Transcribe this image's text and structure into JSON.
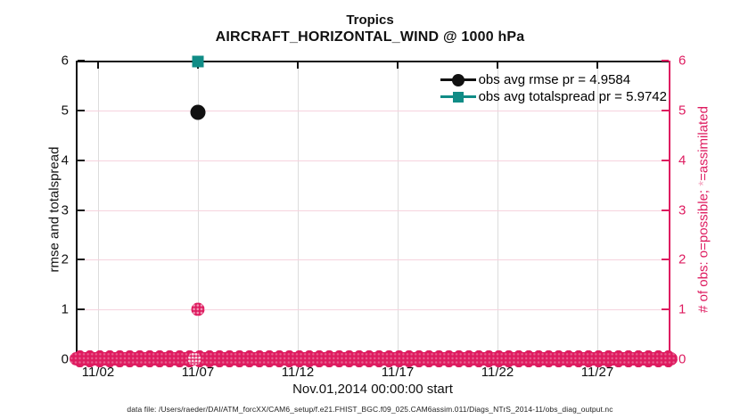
{
  "title": "Tropics",
  "subtitle": "AIRCRAFT_HORIZONTAL_WIND @ 1000 hPa",
  "footer": "data file: /Users/raeder/DAI/ATM_forcXX/CAM6_setup/f.e21.FHIST_BGC.f09_025.CAM6assim.011/Diags_NTrS_2014-11/obs_diag_output.nc",
  "colors": {
    "pink": "#de1c60",
    "pink_light_star": "#f4a0bd",
    "grid_pink": "#f6d3de",
    "grid_gray": "#dcdcdc",
    "teal": "#108c86",
    "black": "#111111"
  },
  "chart_data": {
    "type": "line",
    "title": "Tropics",
    "subtitle": "AIRCRAFT_HORIZONTAL_WIND @ 1000 hPa",
    "xlabel": "Nov.01,2014 00:00:00 start",
    "ylabel_left": "rmse and totalspread",
    "ylabel_right_prefix": "# of obs: o=possible; ",
    "ylabel_right_star": "*",
    "ylabel_right_suffix": "=assimilated",
    "ylim": [
      0,
      6
    ],
    "ylim_right": [
      0,
      6
    ],
    "grid": true,
    "legend_position": "top-right-inside-no-box",
    "y_ticks": [
      0,
      1,
      2,
      3,
      4,
      5,
      6
    ],
    "x_ticks": [
      "11/02",
      "11/07",
      "11/12",
      "11/17",
      "11/22",
      "11/27"
    ],
    "x_tick_pos_pct": [
      3.75,
      20.54,
      37.33,
      54.12,
      70.91,
      87.71
    ],
    "legend": [
      {
        "label": "obs avg rmse pr = 4.9584",
        "color": "#111111",
        "marker": "circle"
      },
      {
        "label": "obs avg totalspread pr = 5.9742",
        "color": "#108c86",
        "marker": "square"
      }
    ],
    "series": [
      {
        "name": "obs avg rmse pr",
        "marker": "circle",
        "color": "#111111",
        "points": [
          {
            "x": "11/07",
            "x_pct": 20.54,
            "y": 4.9584
          }
        ]
      },
      {
        "name": "obs avg totalspread pr",
        "marker": "square",
        "color": "#108c86",
        "points": [
          {
            "x": "11/07",
            "x_pct": 20.54,
            "y": 5.9742
          }
        ]
      },
      {
        "name": "# of obs possible (o)",
        "marker": "o",
        "color": "#de1c60",
        "note": "o markers at every assimilation time Nov 01 - Nov 30 with value 0 (dense band along y=0); value 1 at 11/07",
        "points": [
          {
            "x": "11/07",
            "x_pct": 20.54,
            "y": 1
          }
        ]
      },
      {
        "name": "# of obs assimilated (*)",
        "marker": "star",
        "color": "#de1c60",
        "note": "* markers coincide with o markers: 0 everywhere, 1 at 11/07",
        "points": [
          {
            "x": "11/07",
            "x_pct": 20.54,
            "y": 1
          }
        ]
      }
    ]
  }
}
